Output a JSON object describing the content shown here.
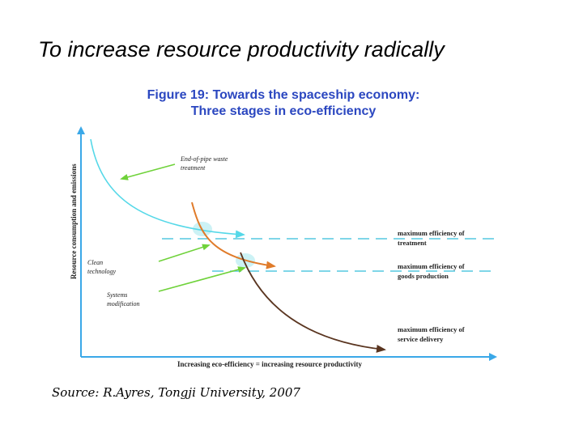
{
  "slide": {
    "title": "To increase resource productivity radically",
    "source": "Source: R.Ayres, Tongji University, 2007"
  },
  "figure": {
    "title_line1": "Figure 19: Towards the spaceship economy:",
    "title_line2": "Three stages in eco-efficiency",
    "y_axis_label": "Resource consumption and emissions",
    "x_axis_label": "Increasing eco-efficiency = increasing resource productivity",
    "annotations": {
      "end_of_pipe_line1": "End-of-pipe waste",
      "end_of_pipe_line2": "treatment",
      "clean_line1": "Clean",
      "clean_line2": "technology",
      "systems_line1": "Systems",
      "systems_line2": "modification"
    },
    "levels": {
      "treatment_line1": "maximum efficiency of",
      "treatment_line2": "treatment",
      "goods_line1": "maximum efficiency of",
      "goods_line2": "goods production",
      "service_line1": "maximum efficiency of",
      "service_line2": "service delivery"
    }
  },
  "colors": {
    "title_blue": "#2b47c0",
    "curve_cyan": "#55d8e8",
    "curve_orange": "#e07b2a",
    "curve_brown": "#5a3520",
    "pointer_green": "#6fd23a",
    "axis_blue": "#3aa8e8"
  }
}
